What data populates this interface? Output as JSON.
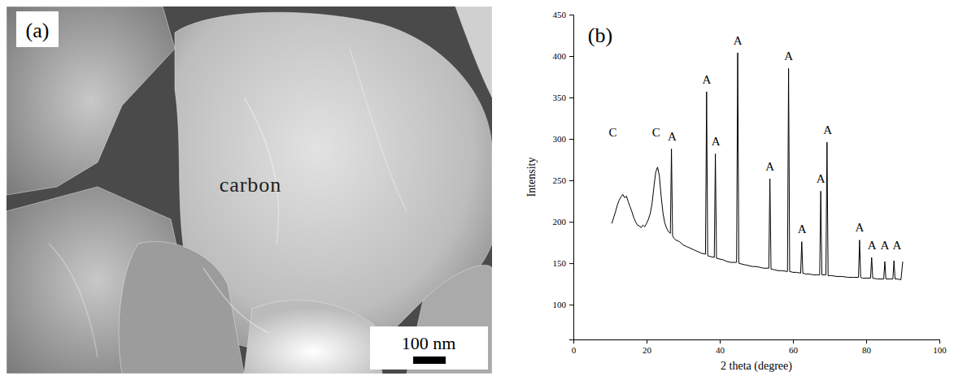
{
  "panel_a": {
    "label": "(a)",
    "annotation": "carbon",
    "scale_bar": "100 nm"
  },
  "chart_data": {
    "type": "line",
    "title": "(b)",
    "x_label": "2 theta (degree)",
    "y_label": "Intensity",
    "color": "#000000",
    "x": [
      10.5,
      11,
      11.5,
      12,
      12.5,
      13,
      13.5,
      14,
      14.5,
      15,
      15.5,
      16,
      16.5,
      17,
      17.5,
      18,
      18.5,
      19,
      19.5,
      20,
      20.5,
      21,
      21.5,
      22,
      22.5,
      23,
      23.5,
      24,
      24.5,
      25,
      25.5,
      26,
      26.5,
      26.8,
      27.1,
      27.5,
      28,
      29,
      30,
      31,
      32,
      33,
      34,
      35,
      36.1,
      36.4,
      36.7,
      37.5,
      38.5,
      38.8,
      39.1,
      40,
      41,
      42,
      43,
      44.6,
      44.9,
      45.2,
      46,
      47,
      48,
      49,
      50,
      51,
      52,
      53.4,
      53.7,
      54,
      55,
      56,
      57,
      58.5,
      58.8,
      59.1,
      60,
      61,
      62.1,
      62.4,
      62.7,
      63.5,
      64.5,
      65.5,
      66.5,
      67.3,
      67.6,
      67.9,
      69.0,
      69.3,
      69.6,
      70.5,
      72,
      73.5,
      75,
      76.5,
      77.9,
      78.2,
      78.5,
      79,
      80,
      81.2,
      81.5,
      81.8,
      83,
      84.8,
      85.1,
      85.4,
      86.5,
      87.3,
      87.6,
      87.9,
      88.5,
      89.5,
      90
    ],
    "values": [
      198,
      205,
      212,
      220,
      226,
      230,
      233,
      229,
      231,
      224,
      218,
      212,
      205,
      200,
      196,
      195,
      193,
      196,
      194,
      198,
      203,
      210,
      222,
      242,
      260,
      266,
      255,
      230,
      210,
      198,
      192,
      188,
      186,
      288,
      183,
      180,
      178,
      176,
      172,
      170,
      168,
      166,
      164,
      162,
      161,
      357,
      159,
      158,
      157,
      282,
      156,
      155,
      154,
      152,
      151,
      151,
      404,
      150,
      149,
      148,
      147,
      146,
      146,
      145,
      144,
      144,
      252,
      143,
      142,
      141,
      141,
      140,
      385,
      140,
      139,
      139,
      138,
      176,
      138,
      137,
      137,
      136,
      136,
      136,
      237,
      136,
      136,
      296,
      135,
      135,
      134,
      134,
      133,
      133,
      133,
      178,
      133,
      132,
      132,
      132,
      157,
      132,
      131,
      131,
      152,
      131,
      131,
      131,
      153,
      131,
      131,
      130,
      152
    ],
    "xlim": [
      0,
      100
    ],
    "ylim": [
      58,
      450
    ],
    "xticks": [
      0,
      20,
      40,
      60,
      80,
      100
    ],
    "yticks": [
      100,
      150,
      200,
      250,
      300,
      350,
      400,
      450
    ],
    "annotations": [
      {
        "text": "C",
        "x": 10.8,
        "y": 303
      },
      {
        "text": "C",
        "x": 22.6,
        "y": 303
      },
      {
        "text": "A",
        "x": 27.0,
        "y": 298
      },
      {
        "text": "A",
        "x": 36.4,
        "y": 367
      },
      {
        "text": "A",
        "x": 38.9,
        "y": 292
      },
      {
        "text": "A",
        "x": 44.9,
        "y": 414
      },
      {
        "text": "A",
        "x": 53.7,
        "y": 262
      },
      {
        "text": "A",
        "x": 58.8,
        "y": 395
      },
      {
        "text": "A",
        "x": 62.5,
        "y": 186
      },
      {
        "text": "A",
        "x": 67.6,
        "y": 247
      },
      {
        "text": "A",
        "x": 69.5,
        "y": 306
      },
      {
        "text": "A",
        "x": 78.2,
        "y": 188
      },
      {
        "text": "A",
        "x": 81.6,
        "y": 167
      },
      {
        "text": "A",
        "x": 85.1,
        "y": 167
      },
      {
        "text": "A",
        "x": 88.4,
        "y": 167
      }
    ]
  }
}
